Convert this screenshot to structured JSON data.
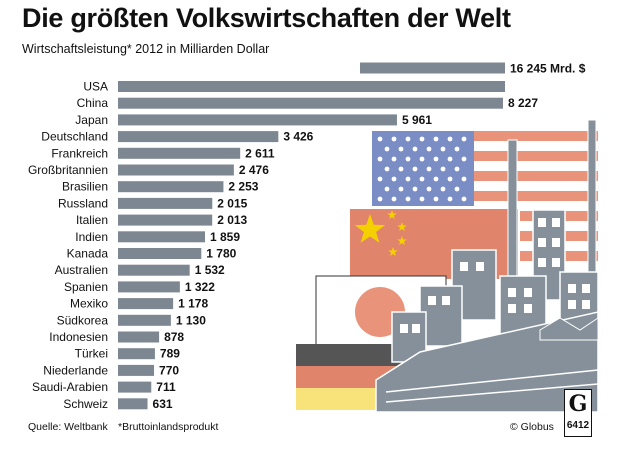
{
  "title": "Die größten Volkswirtschaften der Welt",
  "subtitle": "Wirtschaftsleistung* 2012 in Milliarden Dollar",
  "footer": {
    "source": "Quelle: Weltbank",
    "note": "*Bruttoinlandsprodukt",
    "credit": "© Globus",
    "logo_letter": "G",
    "logo_number": "6412"
  },
  "colors": {
    "bar": "#7d8792",
    "us_red": "#e8937a",
    "us_blue": "#7a8dc5",
    "china_red": "#e0846c",
    "china_star": "#f5d000",
    "japan_sun": "#e8937a",
    "de_black": "#555555",
    "de_red": "#e0846c",
    "de_gold": "#f8e27a",
    "factory": "#86909a"
  },
  "chart_data": {
    "type": "bar",
    "orientation": "horizontal",
    "categories": [
      "USA",
      "China",
      "Japan",
      "Deutschland",
      "Frankreich",
      "Großbritannien",
      "Brasilien",
      "Russland",
      "Italien",
      "Indien",
      "Kanada",
      "Australien",
      "Spanien",
      "Mexiko",
      "Südkorea",
      "Indonesien",
      "Türkei",
      "Niederlande",
      "Saudi-Arabien",
      "Schweiz"
    ],
    "values": [
      16245,
      8227,
      5961,
      3426,
      2611,
      2476,
      2253,
      2015,
      2013,
      1859,
      1780,
      1532,
      1322,
      1178,
      1130,
      878,
      789,
      770,
      711,
      631
    ],
    "value_labels": [
      "16 245 Mrd. $",
      "8 227",
      "5 961",
      "3 426",
      "2 611",
      "2 476",
      "2 253",
      "2 015",
      "2 013",
      "1 859",
      "1 780",
      "1 532",
      "1 322",
      "1 178",
      "1 130",
      "878",
      "789",
      "770",
      "711",
      "631"
    ],
    "title": "Die größten Volkswirtschaften der Welt",
    "subtitle": "Wirtschaftsleistung* 2012 in Milliarden Dollar",
    "note": "USA bar is drawn broken (truncated)",
    "legend": "none",
    "grid": false
  }
}
